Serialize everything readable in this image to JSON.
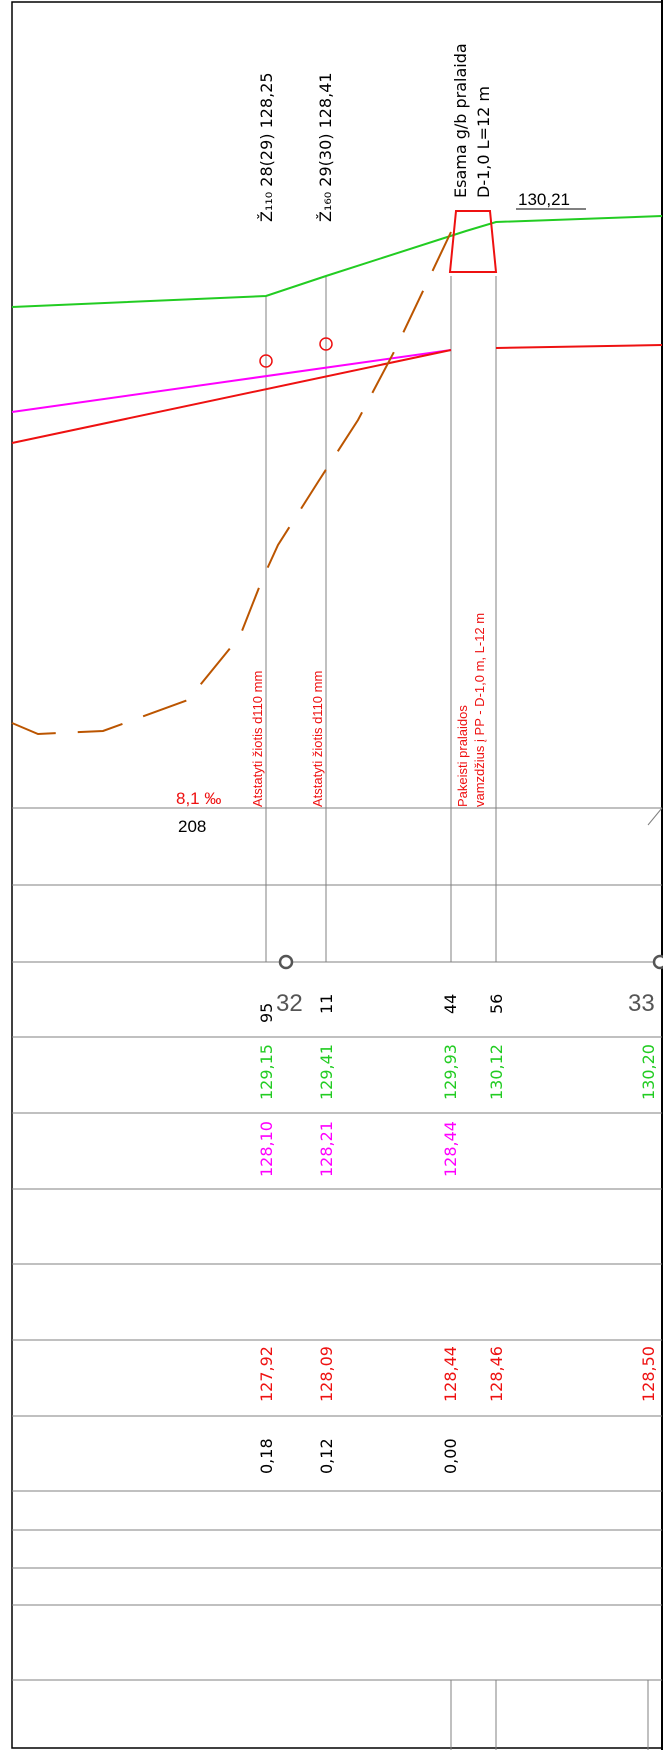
{
  "colors": {
    "ground": "#22cc22",
    "pipe": "#ee1111",
    "magenta": "#ff00ff",
    "brown": "#bb5500",
    "grid": "#808080",
    "frame": "#000000"
  },
  "header": {
    "manhole_1": "Ž₁₁₀ 28(29) 128,25",
    "manhole_2": "Ž₁₆₀ 29(30) 128,41",
    "culvert_title": "Esama g/b pralaida",
    "culvert_spec": "D-1,0 L=12 m",
    "level_label": "130,21"
  },
  "notes": {
    "restore_1": "Atstatyti žiotis d110 mm",
    "restore_2": "Atstatyti žiotis d110 mm",
    "replace_1": "Pakeisti pralaidos",
    "replace_2": "vamzdžius į PP - D-1,0 m, L-12 m"
  },
  "slope": {
    "grade": "8,1 ‰",
    "length": "208"
  },
  "rows": {
    "distances": [
      {
        "a": "95",
        "b": "32"
      },
      {
        "a": "11",
        "b": ""
      },
      {
        "a": "44",
        "b": ""
      },
      {
        "a": "56",
        "b": ""
      },
      {
        "a": "33",
        "b": ""
      }
    ],
    "ground_levels": [
      "129,15",
      "129,41",
      "129,93",
      "130,12",
      "130,20"
    ],
    "magenta_levels": [
      "128,10",
      "128,21",
      "128,44"
    ],
    "pipe_levels": [
      "127,92",
      "128,09",
      "128,44",
      "128,46",
      "128,50"
    ],
    "depths": [
      "0,18",
      "0,12",
      "0,00"
    ]
  }
}
